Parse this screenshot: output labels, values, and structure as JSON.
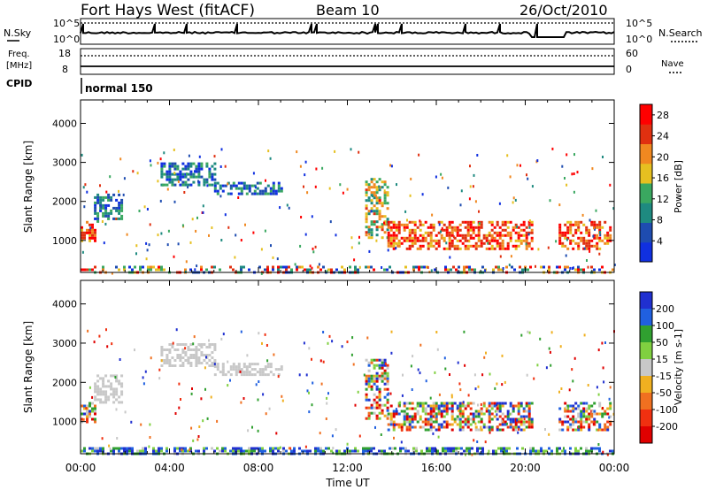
{
  "header": {
    "station": "Fort Hays West (fitACF)",
    "beam": "Beam 10",
    "date": "26/Oct/2010"
  },
  "status_panels": {
    "nsky_label": "N.Sky",
    "nsearch_label": "N.Search",
    "noise_ticks": [
      "10^5",
      "10^0"
    ],
    "freq_label_line1": "Freq.",
    "freq_label_line2": "[MHz]",
    "freq_ticks": [
      "18",
      "8"
    ],
    "nave_label": "Nave",
    "nave_ticks": [
      "60",
      "0"
    ],
    "cpid_label": "CPID",
    "cpid_value": "normal 150"
  },
  "chart_data": [
    {
      "type": "heatmap",
      "name": "power",
      "ylabel": "Slant Range [km]",
      "xlabel": "Time UT",
      "x_ticks": [
        "00:00",
        "04:00",
        "08:00",
        "12:00",
        "16:00",
        "20:00",
        "00:00"
      ],
      "xlim_hours": [
        0,
        24
      ],
      "y_ticks": [
        1000,
        2000,
        3000,
        4000
      ],
      "ylim": [
        180,
        4600
      ],
      "colorbar": {
        "label": "Power [dB]",
        "ticks": [
          4,
          8,
          12,
          16,
          20,
          24,
          28
        ],
        "range": [
          0,
          30
        ],
        "colors": [
          "#1030e0",
          "#1e4cb0",
          "#1e8a80",
          "#3aa860",
          "#e6c020",
          "#f08820",
          "#e03010",
          "#ff0000"
        ]
      },
      "regions": [
        {
          "t_start": 0.0,
          "t_end": 0.6,
          "range_min": 1000,
          "range_max": 1500,
          "level": "high"
        },
        {
          "t_start": 0.6,
          "t_end": 1.9,
          "range_min": 1500,
          "range_max": 2200,
          "level": "low"
        },
        {
          "t_start": 3.6,
          "t_end": 6.0,
          "range_min": 2400,
          "range_max": 3000,
          "level": "low"
        },
        {
          "t_start": 6.0,
          "t_end": 9.1,
          "range_min": 2200,
          "range_max": 2500,
          "level": "low"
        },
        {
          "t_start": 12.8,
          "t_end": 13.8,
          "range_min": 1100,
          "range_max": 2600,
          "level": "mid"
        },
        {
          "t_start": 13.8,
          "t_end": 20.3,
          "range_min": 800,
          "range_max": 1500,
          "level": "high"
        },
        {
          "t_start": 21.5,
          "t_end": 23.8,
          "range_min": 800,
          "range_max": 1500,
          "level": "high"
        },
        {
          "t_start": 0.0,
          "t_end": 24.0,
          "range_min": 180,
          "range_max": 350,
          "level": "mixed"
        }
      ]
    },
    {
      "type": "heatmap",
      "name": "velocity",
      "ylabel": "Slant Range [km]",
      "xlabel": "Time UT",
      "x_ticks": [
        "00:00",
        "04:00",
        "08:00",
        "12:00",
        "16:00",
        "20:00",
        "00:00"
      ],
      "xlim_hours": [
        0,
        24
      ],
      "y_ticks": [
        1000,
        2000,
        3000,
        4000
      ],
      "ylim": [
        180,
        4600
      ],
      "colorbar": {
        "label": "Velocity [m s-1]",
        "ticks": [
          200,
          100,
          50,
          15,
          -15,
          -50,
          -100,
          -200
        ],
        "colors": [
          "#2030d0",
          "#2060e0",
          "#30a030",
          "#80d040",
          "#c8c8c8",
          "#f0b020",
          "#f07020",
          "#f03010",
          "#e00000"
        ]
      },
      "regions": [
        {
          "t_start": 0.0,
          "t_end": 0.6,
          "range_min": 1000,
          "range_max": 1500,
          "level": "mixed"
        },
        {
          "t_start": 0.6,
          "t_end": 1.9,
          "range_min": 1500,
          "range_max": 2200,
          "level": "ground"
        },
        {
          "t_start": 3.6,
          "t_end": 6.0,
          "range_min": 2400,
          "range_max": 3000,
          "level": "ground"
        },
        {
          "t_start": 6.0,
          "t_end": 9.1,
          "range_min": 2200,
          "range_max": 2500,
          "level": "ground"
        },
        {
          "t_start": 12.8,
          "t_end": 13.8,
          "range_min": 1100,
          "range_max": 2600,
          "level": "mixed"
        },
        {
          "t_start": 13.8,
          "t_end": 20.3,
          "range_min": 800,
          "range_max": 1500,
          "level": "mixed"
        },
        {
          "t_start": 21.5,
          "t_end": 23.8,
          "range_min": 800,
          "range_max": 1500,
          "level": "mixed"
        },
        {
          "t_start": 0.0,
          "t_end": 24.0,
          "range_min": 180,
          "range_max": 350,
          "level": "low"
        }
      ]
    }
  ]
}
